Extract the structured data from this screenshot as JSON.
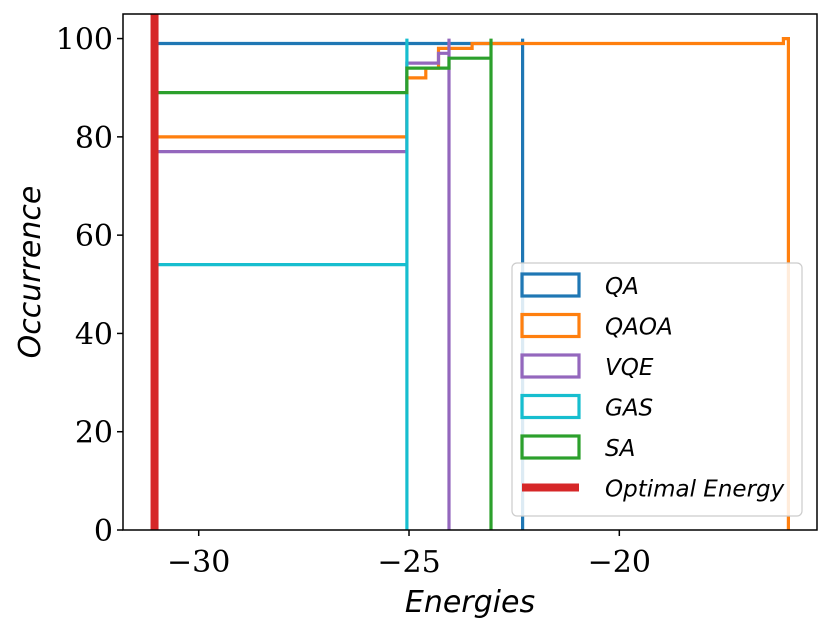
{
  "chart_data": {
    "type": "step",
    "title": "",
    "xlabel": "Energies",
    "ylabel": "Occurrence",
    "xlim": [
      -31.8,
      -15.3
    ],
    "ylim": [
      0,
      105
    ],
    "xticks": [
      -30,
      -25,
      -20
    ],
    "xtick_labels": [
      "−30",
      "−25",
      "−20"
    ],
    "yticks": [
      0,
      20,
      40,
      60,
      80,
      100
    ],
    "ytick_labels": [
      "0",
      "20",
      "40",
      "60",
      "80",
      "100"
    ],
    "legend_position": "lower-right",
    "series": [
      {
        "name": "QA",
        "color": "#1f77b4",
        "points": [
          [
            -31,
            99
          ],
          [
            -22.3,
            99
          ],
          [
            -22.3,
            100
          ]
        ],
        "drop_x": -22.3
      },
      {
        "name": "QAOA",
        "color": "#ff7f0e",
        "points": [
          [
            -31,
            80
          ],
          [
            -25.05,
            80
          ],
          [
            -25.05,
            92
          ],
          [
            -24.6,
            92
          ],
          [
            -24.6,
            94
          ],
          [
            -24.3,
            94
          ],
          [
            -24.3,
            98
          ],
          [
            -23.5,
            98
          ],
          [
            -23.5,
            99
          ],
          [
            -16.1,
            99
          ],
          [
            -16.1,
            100
          ],
          [
            -15.98,
            100
          ]
        ],
        "drop_x": -15.98
      },
      {
        "name": "VQE",
        "color": "#9467bd",
        "points": [
          [
            -31,
            77
          ],
          [
            -25.05,
            77
          ],
          [
            -25.05,
            95
          ],
          [
            -24.3,
            95
          ],
          [
            -24.3,
            97
          ],
          [
            -24.05,
            97
          ],
          [
            -24.05,
            100
          ]
        ],
        "drop_x": -24.05
      },
      {
        "name": "GAS",
        "color": "#17becf",
        "points": [
          [
            -31,
            54
          ],
          [
            -25.05,
            54
          ],
          [
            -25.05,
            100
          ]
        ],
        "drop_x": -25.05
      },
      {
        "name": "SA",
        "color": "#2ca02c",
        "points": [
          [
            -31,
            89
          ],
          [
            -25.05,
            89
          ],
          [
            -25.05,
            94
          ],
          [
            -24.05,
            94
          ],
          [
            -24.05,
            96
          ],
          [
            -23.05,
            96
          ],
          [
            -23.05,
            100
          ]
        ],
        "drop_x": -23.05
      }
    ],
    "vline": {
      "name": "Optimal Energy",
      "x": -31.05,
      "color": "#d62728"
    }
  }
}
